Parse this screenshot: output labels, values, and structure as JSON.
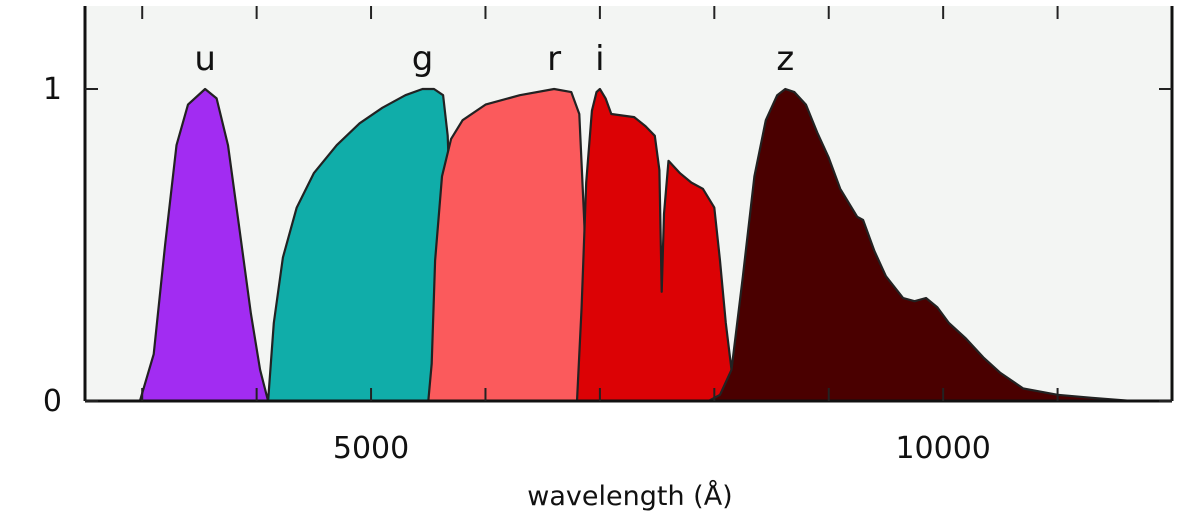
{
  "chart_data": {
    "type": "area",
    "title": "",
    "xlabel": "wavelength (Å)",
    "ylabel": "",
    "xlim": [
      2500,
      12000
    ],
    "ylim": [
      0,
      1
    ],
    "x_ticks": [
      3000,
      4000,
      5000,
      6000,
      7000,
      8000,
      9000,
      10000,
      11000
    ],
    "x_tick_labels": [
      {
        "value": 5000,
        "label": "5000"
      },
      {
        "value": 10000,
        "label": "10000"
      }
    ],
    "y_tick_labels": [
      {
        "value": 0,
        "label": "0"
      },
      {
        "value": 1,
        "label": "1"
      }
    ],
    "grid": false,
    "series": [
      {
        "name": "u",
        "color": "#a22cf2",
        "points": [
          [
            2980,
            0
          ],
          [
            3100,
            0.15
          ],
          [
            3200,
            0.5
          ],
          [
            3300,
            0.82
          ],
          [
            3400,
            0.95
          ],
          [
            3550,
            1.0
          ],
          [
            3650,
            0.97
          ],
          [
            3750,
            0.82
          ],
          [
            3850,
            0.55
          ],
          [
            3950,
            0.28
          ],
          [
            4030,
            0.1
          ],
          [
            4100,
            0
          ]
        ]
      },
      {
        "name": "g",
        "color": "#10ada9",
        "points": [
          [
            4100,
            0
          ],
          [
            4150,
            0.25
          ],
          [
            4230,
            0.46
          ],
          [
            4350,
            0.62
          ],
          [
            4500,
            0.73
          ],
          [
            4700,
            0.82
          ],
          [
            4900,
            0.89
          ],
          [
            5100,
            0.94
          ],
          [
            5300,
            0.98
          ],
          [
            5450,
            1.0
          ],
          [
            5550,
            1.0
          ],
          [
            5630,
            0.98
          ],
          [
            5670,
            0.85
          ],
          [
            5700,
            0.55
          ],
          [
            5730,
            0.25
          ],
          [
            5760,
            0.08
          ],
          [
            5800,
            0
          ]
        ]
      },
      {
        "name": "r",
        "color": "#fb5a5c",
        "points": [
          [
            5500,
            0
          ],
          [
            5530,
            0.12
          ],
          [
            5560,
            0.45
          ],
          [
            5620,
            0.72
          ],
          [
            5700,
            0.84
          ],
          [
            5800,
            0.9
          ],
          [
            6000,
            0.95
          ],
          [
            6300,
            0.98
          ],
          [
            6600,
            1.0
          ],
          [
            6750,
            0.99
          ],
          [
            6820,
            0.92
          ],
          [
            6860,
            0.6
          ],
          [
            6900,
            0.25
          ],
          [
            6940,
            0.06
          ],
          [
            6980,
            0
          ]
        ]
      },
      {
        "name": "i",
        "color": "#dc0205",
        "points": [
          [
            6800,
            0
          ],
          [
            6840,
            0.3
          ],
          [
            6880,
            0.7
          ],
          [
            6930,
            0.93
          ],
          [
            6970,
            0.99
          ],
          [
            7000,
            1.0
          ],
          [
            7050,
            0.97
          ],
          [
            7100,
            0.92
          ],
          [
            7300,
            0.91
          ],
          [
            7400,
            0.88
          ],
          [
            7480,
            0.85
          ],
          [
            7520,
            0.74
          ],
          [
            7540,
            0.35
          ],
          [
            7560,
            0.6
          ],
          [
            7600,
            0.77
          ],
          [
            7700,
            0.73
          ],
          [
            7800,
            0.7
          ],
          [
            7900,
            0.68
          ],
          [
            8000,
            0.62
          ],
          [
            8050,
            0.45
          ],
          [
            8100,
            0.25
          ],
          [
            8150,
            0.1
          ],
          [
            8200,
            0.03
          ],
          [
            8250,
            0
          ]
        ]
      },
      {
        "name": "z",
        "color": "#4a0000",
        "points": [
          [
            7950,
            0
          ],
          [
            8050,
            0.02
          ],
          [
            8150,
            0.1
          ],
          [
            8250,
            0.4
          ],
          [
            8350,
            0.72
          ],
          [
            8450,
            0.9
          ],
          [
            8550,
            0.98
          ],
          [
            8620,
            1.0
          ],
          [
            8700,
            0.99
          ],
          [
            8800,
            0.95
          ],
          [
            8900,
            0.86
          ],
          [
            9000,
            0.78
          ],
          [
            9100,
            0.68
          ],
          [
            9200,
            0.62
          ],
          [
            9250,
            0.59
          ],
          [
            9300,
            0.58
          ],
          [
            9400,
            0.48
          ],
          [
            9500,
            0.4
          ],
          [
            9650,
            0.33
          ],
          [
            9750,
            0.32
          ],
          [
            9850,
            0.33
          ],
          [
            9950,
            0.3
          ],
          [
            10050,
            0.25
          ],
          [
            10200,
            0.2
          ],
          [
            10350,
            0.14
          ],
          [
            10500,
            0.09
          ],
          [
            10700,
            0.04
          ],
          [
            11000,
            0.02
          ],
          [
            11300,
            0.01
          ],
          [
            11650,
            0
          ]
        ]
      }
    ]
  }
}
